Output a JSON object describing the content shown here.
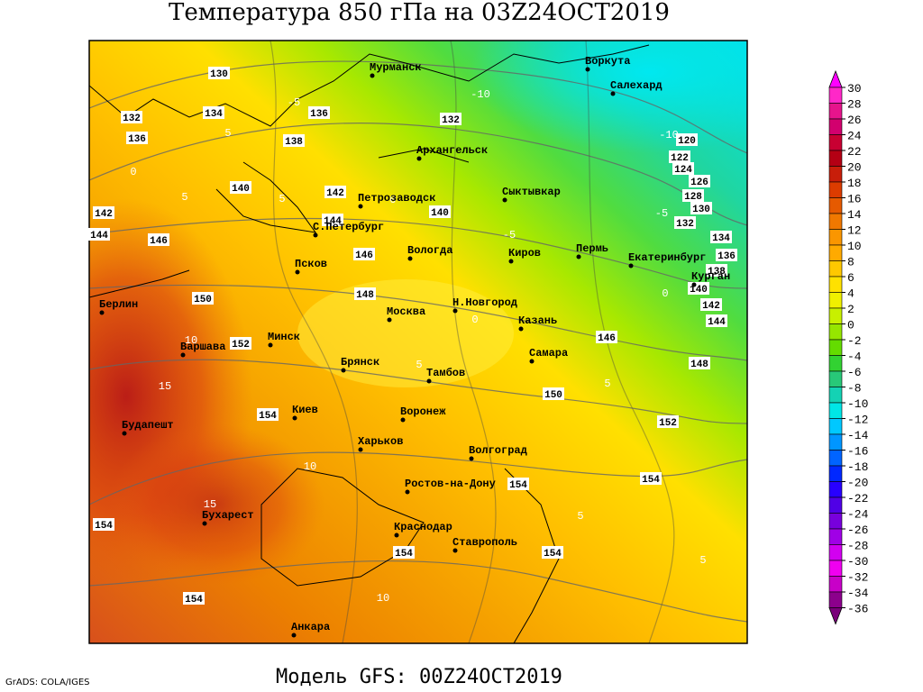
{
  "title": "Температура 850 гПа на 03Z24OCT2019",
  "footer": "Модель GFS: 00Z24OCT2019",
  "credit": "GrADS: COLA/IGES",
  "cities": [
    "Мурманск",
    "Архангельск",
    "Воркута",
    "Салехард",
    "Сыктывкар",
    "Петрозаводск",
    "С.Петербург",
    "Вологда",
    "Киров",
    "Пермь",
    "Екатеринбург",
    "Курган",
    "Псков",
    "Москва",
    "Н.Новгород",
    "Казань",
    "Берлин",
    "Варшава",
    "Минск",
    "Брянск",
    "Тамбов",
    "Самара",
    "Киев",
    "Воронеж",
    "Будапешт",
    "Харьков",
    "Волгоград",
    "Ростов-на-Дону",
    "Бухарест",
    "Краснодар",
    "Ставрополь",
    "Анкара"
  ],
  "height_labels": [
    130,
    132,
    136,
    134,
    138,
    136,
    140,
    142,
    144,
    142,
    144,
    146,
    146,
    140,
    132,
    148,
    150,
    152,
    154,
    150,
    152,
    148,
    146,
    144,
    142,
    140,
    138,
    136,
    134,
    132,
    130,
    128,
    126,
    124,
    122,
    120,
    154,
    154,
    154,
    154,
    154,
    154
  ],
  "temperature_labels": [
    -5,
    5,
    0,
    5,
    0,
    5,
    -5,
    -5,
    -10,
    0,
    5,
    10,
    15,
    10,
    15,
    10,
    5,
    5,
    5,
    0,
    -10
  ],
  "colorbar": {
    "ticks": [
      30,
      28,
      26,
      24,
      22,
      20,
      18,
      16,
      14,
      12,
      10,
      8,
      6,
      4,
      2,
      0,
      -2,
      -4,
      -6,
      -8,
      -10,
      -12,
      -14,
      -16,
      -18,
      -20,
      -22,
      -24,
      -26,
      -28,
      -30,
      -32,
      -34,
      -36
    ],
    "colors": [
      "#ff28c8",
      "#e6148c",
      "#d2006e",
      "#c80032",
      "#b40014",
      "#c81e0a",
      "#dc3c00",
      "#e65a00",
      "#f07800",
      "#fa9600",
      "#ffaa00",
      "#ffc800",
      "#ffe100",
      "#f0f000",
      "#c8f000",
      "#96e600",
      "#64dc00",
      "#32d232",
      "#28c878",
      "#14d2b4",
      "#00e6e6",
      "#00c8ff",
      "#0096ff",
      "#0064ff",
      "#0028ff",
      "#2800ff",
      "#5000e6",
      "#7800dc",
      "#a000e6",
      "#d200f0",
      "#f000f0",
      "#c800c8",
      "#8c008c"
    ],
    "top_color": "#ff00ff",
    "bottom_color": "#7a007a"
  }
}
